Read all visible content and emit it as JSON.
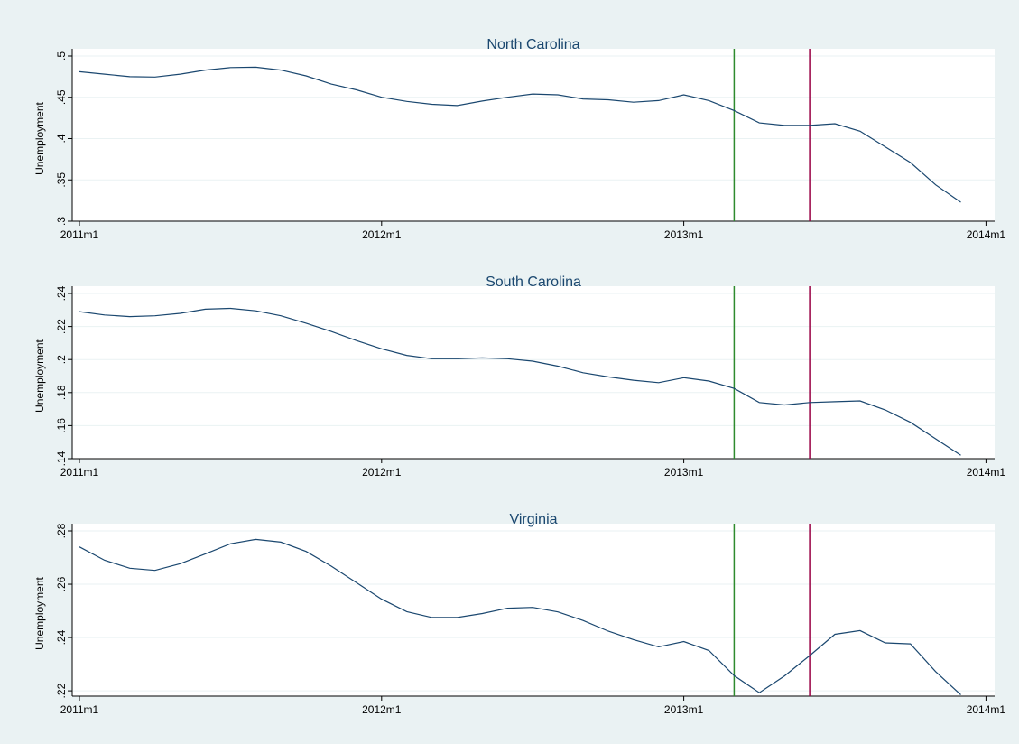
{
  "chart_data": [
    {
      "type": "line",
      "title": "North Carolina",
      "ylabel": "Unemployment",
      "ylim": [
        0.3,
        0.5
      ],
      "yticks": [
        0.3,
        0.35,
        0.4,
        0.45,
        0.5
      ],
      "ytick_labels": [
        ".3",
        ".35",
        ".4",
        ".45",
        ".5"
      ],
      "x_range": [
        "2011m1",
        "2014m1"
      ],
      "xticks": [
        "2011m1",
        "2012m1",
        "2013m1",
        "2014m1"
      ],
      "x": [
        "2011m1",
        "2011m2",
        "2011m3",
        "2011m4",
        "2011m5",
        "2011m6",
        "2011m7",
        "2011m8",
        "2011m9",
        "2011m10",
        "2011m11",
        "2011m12",
        "2012m1",
        "2012m2",
        "2012m3",
        "2012m4",
        "2012m5",
        "2012m6",
        "2012m7",
        "2012m8",
        "2012m9",
        "2012m10",
        "2012m11",
        "2012m12",
        "2013m1",
        "2013m2",
        "2013m3",
        "2013m4",
        "2013m5",
        "2013m6",
        "2013m7",
        "2013m8",
        "2013m9",
        "2013m10",
        "2013m11",
        "2013m12"
      ],
      "values": [
        0.481,
        0.478,
        0.475,
        0.4745,
        0.478,
        0.483,
        0.486,
        0.4865,
        0.483,
        0.476,
        0.466,
        0.459,
        0.45,
        0.445,
        0.4415,
        0.44,
        0.4455,
        0.45,
        0.454,
        0.453,
        0.448,
        0.447,
        0.444,
        0.446,
        0.453,
        0.446,
        0.434,
        0.419,
        0.416,
        0.416,
        0.418,
        0.409,
        0.39,
        0.371,
        0.344,
        0.323
      ],
      "vlines": [
        {
          "x": "2013m3",
          "color": "#2e8b2e"
        },
        {
          "x": "2013m6",
          "color": "#990044"
        }
      ],
      "line_color": "#1a476f",
      "grid": true
    },
    {
      "type": "line",
      "title": "South Carolina",
      "ylabel": "Unemployment",
      "ylim": [
        0.14,
        0.24
      ],
      "yticks": [
        0.14,
        0.16,
        0.18,
        0.2,
        0.22,
        0.24
      ],
      "ytick_labels": [
        ".14",
        ".16",
        ".18",
        ".2",
        ".22",
        ".24"
      ],
      "x_range": [
        "2011m1",
        "2014m1"
      ],
      "xticks": [
        "2011m1",
        "2012m1",
        "2013m1",
        "2014m1"
      ],
      "x": [
        "2011m1",
        "2011m2",
        "2011m3",
        "2011m4",
        "2011m5",
        "2011m6",
        "2011m7",
        "2011m8",
        "2011m9",
        "2011m10",
        "2011m11",
        "2011m12",
        "2012m1",
        "2012m2",
        "2012m3",
        "2012m4",
        "2012m5",
        "2012m6",
        "2012m7",
        "2012m8",
        "2012m9",
        "2012m10",
        "2012m11",
        "2012m12",
        "2013m1",
        "2013m2",
        "2013m3",
        "2013m4",
        "2013m5",
        "2013m6",
        "2013m7",
        "2013m8",
        "2013m9",
        "2013m10",
        "2013m11",
        "2013m12"
      ],
      "values": [
        0.229,
        0.227,
        0.226,
        0.2265,
        0.228,
        0.2305,
        0.231,
        0.2295,
        0.2265,
        0.222,
        0.217,
        0.2115,
        0.2065,
        0.2025,
        0.2005,
        0.2005,
        0.201,
        0.2005,
        0.199,
        0.196,
        0.192,
        0.1895,
        0.1875,
        0.186,
        0.189,
        0.187,
        0.1825,
        0.174,
        0.1725,
        0.174,
        0.1745,
        0.175,
        0.1695,
        0.162,
        0.152,
        0.142
      ],
      "vlines": [
        {
          "x": "2013m3",
          "color": "#2e8b2e"
        },
        {
          "x": "2013m6",
          "color": "#990044"
        }
      ],
      "line_color": "#1a476f",
      "grid": true
    },
    {
      "type": "line",
      "title": "Virginia",
      "ylabel": "Unemployment",
      "ylim": [
        0.218,
        0.28
      ],
      "yticks": [
        0.22,
        0.24,
        0.26,
        0.28
      ],
      "ytick_labels": [
        ".22",
        ".24",
        ".26",
        ".28"
      ],
      "x_range": [
        "2011m1",
        "2014m1"
      ],
      "xticks": [
        "2011m1",
        "2012m1",
        "2013m1",
        "2014m1"
      ],
      "x": [
        "2011m1",
        "2011m2",
        "2011m3",
        "2011m4",
        "2011m5",
        "2011m6",
        "2011m7",
        "2011m8",
        "2011m9",
        "2011m10",
        "2011m11",
        "2011m12",
        "2012m1",
        "2012m2",
        "2012m3",
        "2012m4",
        "2012m5",
        "2012m6",
        "2012m7",
        "2012m8",
        "2012m9",
        "2012m10",
        "2012m11",
        "2012m12",
        "2013m1",
        "2013m2",
        "2013m3",
        "2013m4",
        "2013m5",
        "2013m6",
        "2013m7",
        "2013m8",
        "2013m9",
        "2013m10",
        "2013m11",
        "2013m12"
      ],
      "values": [
        0.274,
        0.269,
        0.266,
        0.2652,
        0.2677,
        0.2714,
        0.2752,
        0.2768,
        0.2758,
        0.2723,
        0.2668,
        0.2606,
        0.2544,
        0.2497,
        0.2475,
        0.2475,
        0.249,
        0.251,
        0.2513,
        0.2496,
        0.2464,
        0.2424,
        0.2392,
        0.2365,
        0.2385,
        0.2351,
        0.2257,
        0.2193,
        0.2256,
        0.2332,
        0.2412,
        0.2426,
        0.238,
        0.2376,
        0.2272,
        0.2185
      ],
      "vlines": [
        {
          "x": "2013m3",
          "color": "#2e8b2e"
        },
        {
          "x": "2013m6",
          "color": "#990044"
        }
      ],
      "line_color": "#1a476f",
      "grid": true
    }
  ]
}
